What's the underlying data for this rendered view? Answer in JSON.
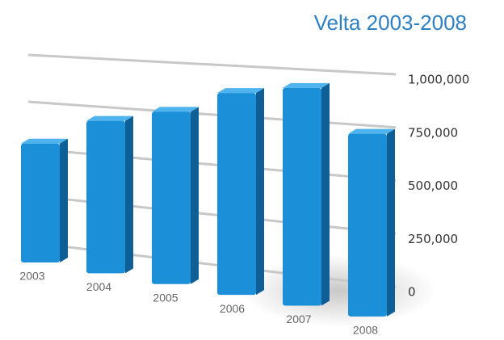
{
  "chart_data": {
    "type": "bar",
    "title": "Velta 2003-2008",
    "categories": [
      "2003",
      "2004",
      "2005",
      "2006",
      "2007",
      "2008"
    ],
    "values": [
      640000,
      780000,
      840000,
      940000,
      970000,
      780000
    ],
    "color": "#1b8fd8",
    "ylim": [
      0,
      1000000
    ],
    "yticks": [
      0,
      {
        "value": 250000,
        "label": "250,000"
      },
      {
        "value": 500000,
        "label": "500,000"
      },
      {
        "value": 750000,
        "label": "750,000"
      },
      {
        "value": 1000000,
        "label": "1,000,000"
      }
    ],
    "grid": true
  }
}
